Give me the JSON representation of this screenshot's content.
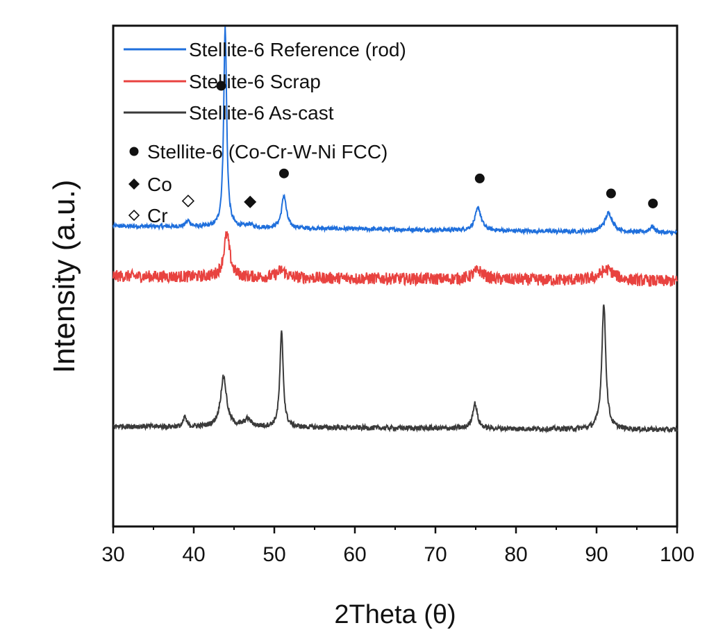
{
  "chart_data": {
    "type": "line",
    "xlabel": "2Theta (θ)",
    "ylabel": "Intensity (a.u.)",
    "xlim": [
      30,
      100
    ],
    "xticks": [
      30,
      40,
      50,
      60,
      70,
      80,
      90,
      100
    ],
    "yticks_shown": false,
    "grid": false,
    "legend_position": "top-left",
    "series": [
      {
        "name": "Stellite-6 Reference (rod)",
        "color": "#1f6fdc",
        "baseline": 0.6,
        "slope": -0.0002,
        "noise": 0.004,
        "peaks": [
          {
            "x": 39.3,
            "height": 0.012,
            "width": 0.35
          },
          {
            "x": 43.9,
            "height": 0.4,
            "width": 0.22
          },
          {
            "x": 46.9,
            "height": 0.006,
            "width": 0.4
          },
          {
            "x": 51.2,
            "height": 0.065,
            "width": 0.35
          },
          {
            "x": 75.3,
            "height": 0.045,
            "width": 0.45
          },
          {
            "x": 91.5,
            "height": 0.038,
            "width": 0.6
          },
          {
            "x": 96.9,
            "height": 0.012,
            "width": 0.4
          }
        ]
      },
      {
        "name": "Stellite-6 Scrap",
        "color": "#e8423f",
        "baseline": 0.5,
        "slope": -0.00015,
        "noise": 0.012,
        "peaks": [
          {
            "x": 44.1,
            "height": 0.085,
            "width": 0.45
          },
          {
            "x": 50.9,
            "height": 0.015,
            "width": 0.6
          },
          {
            "x": 75.3,
            "height": 0.018,
            "width": 0.8
          },
          {
            "x": 91.3,
            "height": 0.022,
            "width": 1.1
          }
        ]
      },
      {
        "name": "Stellite-6 As-cast",
        "color": "#3a3a3a",
        "baseline": 0.2,
        "slope": -0.0001,
        "noise": 0.005,
        "peaks": [
          {
            "x": 38.9,
            "height": 0.02,
            "width": 0.2
          },
          {
            "x": 43.7,
            "height": 0.1,
            "width": 0.45
          },
          {
            "x": 46.7,
            "height": 0.015,
            "width": 0.5
          },
          {
            "x": 50.9,
            "height": 0.19,
            "width": 0.25
          },
          {
            "x": 74.9,
            "height": 0.05,
            "width": 0.35
          },
          {
            "x": 90.9,
            "height": 0.25,
            "width": 0.3
          }
        ]
      }
    ],
    "markers": [
      {
        "symbol": "filled-circle",
        "x": 43.4,
        "y": 0.88
      },
      {
        "symbol": "filled-circle",
        "x": 51.2,
        "y": 0.705
      },
      {
        "symbol": "filled-circle",
        "x": 75.5,
        "y": 0.695
      },
      {
        "symbol": "filled-circle",
        "x": 91.8,
        "y": 0.665
      },
      {
        "symbol": "filled-circle",
        "x": 97.0,
        "y": 0.645
      },
      {
        "symbol": "filled-diamond",
        "x": 47.0,
        "y": 0.648
      },
      {
        "symbol": "open-diamond",
        "x": 39.3,
        "y": 0.65
      }
    ],
    "legend": {
      "lines": [
        {
          "label": "Stellite-6 Reference (rod)",
          "color": "#1f6fdc"
        },
        {
          "label": "Stellite-6 Scrap",
          "color": "#e8423f"
        },
        {
          "label": "Stellite-6 As-cast",
          "color": "#3a3a3a"
        }
      ],
      "symbols": [
        {
          "symbol": "filled-circle",
          "label": "Stellite-6 (Co-Cr-W-Ni FCC)"
        },
        {
          "symbol": "filled-diamond",
          "label": "Co"
        },
        {
          "symbol": "open-diamond",
          "label": "Cr"
        }
      ]
    }
  }
}
